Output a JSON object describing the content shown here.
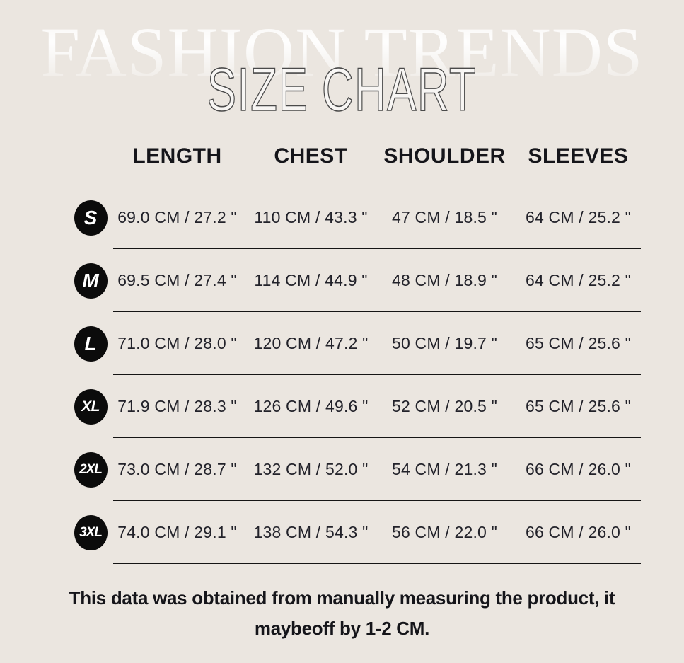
{
  "page": {
    "watermark": "FASHION TRENDS",
    "title": "SIZE CHART",
    "background_color": "#ebe6e0"
  },
  "colors": {
    "background": "#ebe6e0",
    "text": "#1b1b1f",
    "badge_background": "#0b0b0b",
    "badge_text": "#ffffff",
    "row_rule": "#151515",
    "title_outline": "#4a4a4a"
  },
  "table": {
    "columns": [
      "LENGTH",
      "CHEST",
      "SHOULDER",
      "SLEEVES"
    ],
    "rows": [
      {
        "size": "S",
        "cells": [
          "69.0 CM /  27.2 \"",
          "110 CM /  43.3 \"",
          "47 CM /  18.5 \"",
          "64 CM /  25.2 \""
        ]
      },
      {
        "size": "M",
        "cells": [
          "69.5 CM /  27.4 \"",
          "114 CM /  44.9 \"",
          "48 CM /  18.9 \"",
          "64 CM /  25.2 \""
        ]
      },
      {
        "size": "L",
        "cells": [
          "71.0 CM /  28.0 \"",
          "120 CM /  47.2 \"",
          "50 CM /  19.7 \"",
          "65 CM /  25.6 \""
        ]
      },
      {
        "size": "XL",
        "cells": [
          "71.9 CM /  28.3 \"",
          "126 CM /  49.6 \"",
          "52 CM /  20.5 \"",
          "65 CM /  25.6 \""
        ]
      },
      {
        "size": "2XL",
        "cells": [
          "73.0 CM /  28.7 \"",
          "132 CM /  52.0 \"",
          "54 CM /  21.3 \"",
          "66 CM /  26.0 \""
        ]
      },
      {
        "size": "3XL",
        "cells": [
          "74.0 CM /  29.1 \"",
          "138 CM /  54.3 \"",
          "56 CM /  22.0 \"",
          "66 CM /  26.0 \""
        ]
      }
    ]
  },
  "footer": {
    "line1": "This data was obtained from manually measuring the product, it",
    "line2": "maybeoff by 1-2 CM."
  }
}
